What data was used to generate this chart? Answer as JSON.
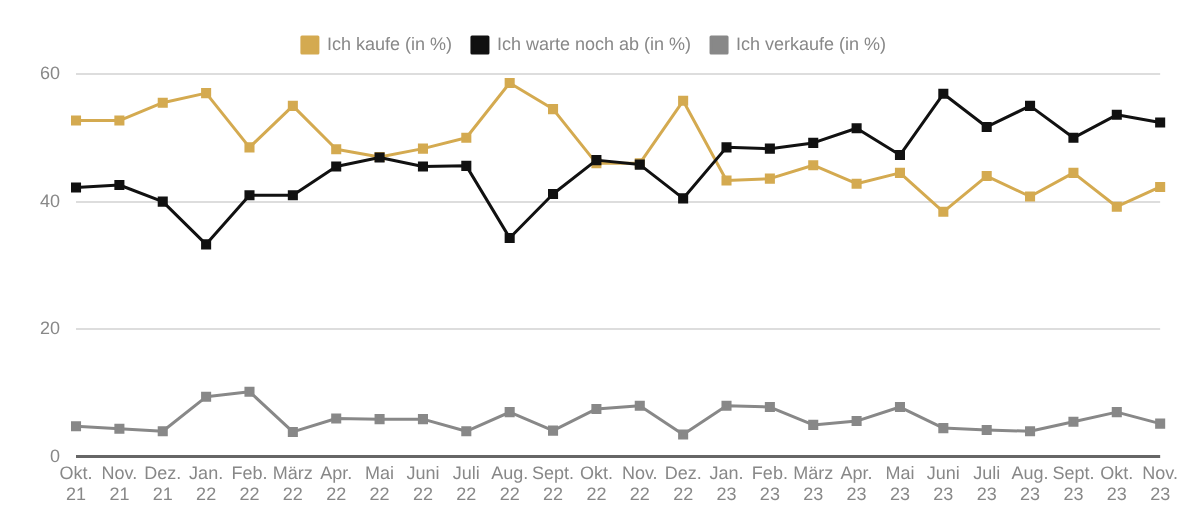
{
  "chart_data": {
    "type": "line",
    "categories": [
      "Okt. 21",
      "Nov. 21",
      "Dez. 21",
      "Jan. 22",
      "Feb. 22",
      "März 22",
      "Apr. 22",
      "Mai 22",
      "Juni 22",
      "Juli 22",
      "Aug. 22",
      "Sept. 22",
      "Okt. 22",
      "Nov. 22",
      "Dez. 22",
      "Jan. 23",
      "Feb. 23",
      "März 23",
      "Apr. 23",
      "Mai 23",
      "Juni 23",
      "Juli 23",
      "Aug. 23",
      "Sept. 23",
      "Okt. 23",
      "Nov. 23"
    ],
    "series": [
      {
        "name": "Ich kaufe (in %)",
        "color": "#d4aa50",
        "values": [
          52.7,
          52.7,
          55.5,
          57,
          48.5,
          55,
          48.2,
          47,
          48.3,
          50,
          58.6,
          54.5,
          46,
          46,
          55.8,
          43.3,
          43.6,
          45.7,
          42.8,
          44.5,
          38.4,
          44,
          40.8,
          44.5,
          39.2,
          42.3
        ]
      },
      {
        "name": "Ich warte noch ab (in %)",
        "color": "#111111",
        "values": [
          42.2,
          42.6,
          40,
          33.3,
          41,
          41,
          45.5,
          46.9,
          45.5,
          45.6,
          34.3,
          41.2,
          46.5,
          45.8,
          40.5,
          48.5,
          48.3,
          49.2,
          51.5,
          47.3,
          56.9,
          51.7,
          55,
          50,
          53.6,
          52.4
        ]
      },
      {
        "name": "Ich verkaufe (in %)",
        "color": "#888888",
        "values": [
          4.8,
          4.4,
          4,
          9.4,
          10.2,
          3.9,
          6,
          5.9,
          5.9,
          4,
          7,
          4.1,
          7.5,
          8,
          3.5,
          8,
          7.8,
          5,
          5.6,
          7.8,
          4.5,
          4.2,
          4,
          5.5,
          7,
          5.2
        ]
      }
    ],
    "ylim": [
      0,
      60
    ],
    "yticks": [
      0,
      20,
      40,
      60
    ],
    "grid": "y",
    "legend": "top",
    "marker": "square",
    "line_style": "solid"
  }
}
